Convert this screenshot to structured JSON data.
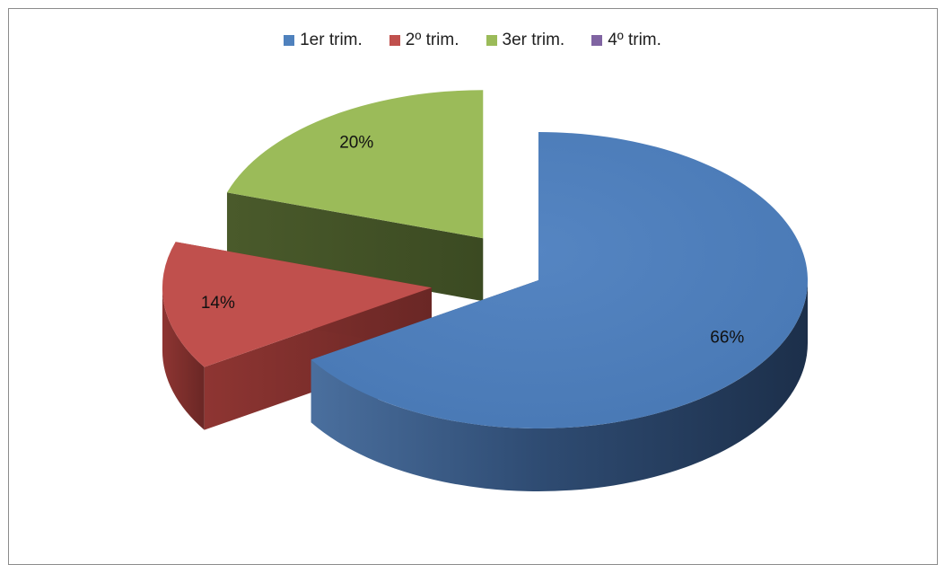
{
  "chart_data": {
    "type": "pie",
    "categories": [
      "1er trim.",
      "2º trim.",
      "3er trim.",
      "4º trim."
    ],
    "values": [
      66,
      14,
      20,
      0
    ],
    "data_labels": [
      "66%",
      "14%",
      "20%",
      ""
    ],
    "colors": [
      "#4f81bd",
      "#c0504d",
      "#9bbb59",
      "#8064a2"
    ],
    "legend_position": "top",
    "style": "3d-exploded"
  }
}
